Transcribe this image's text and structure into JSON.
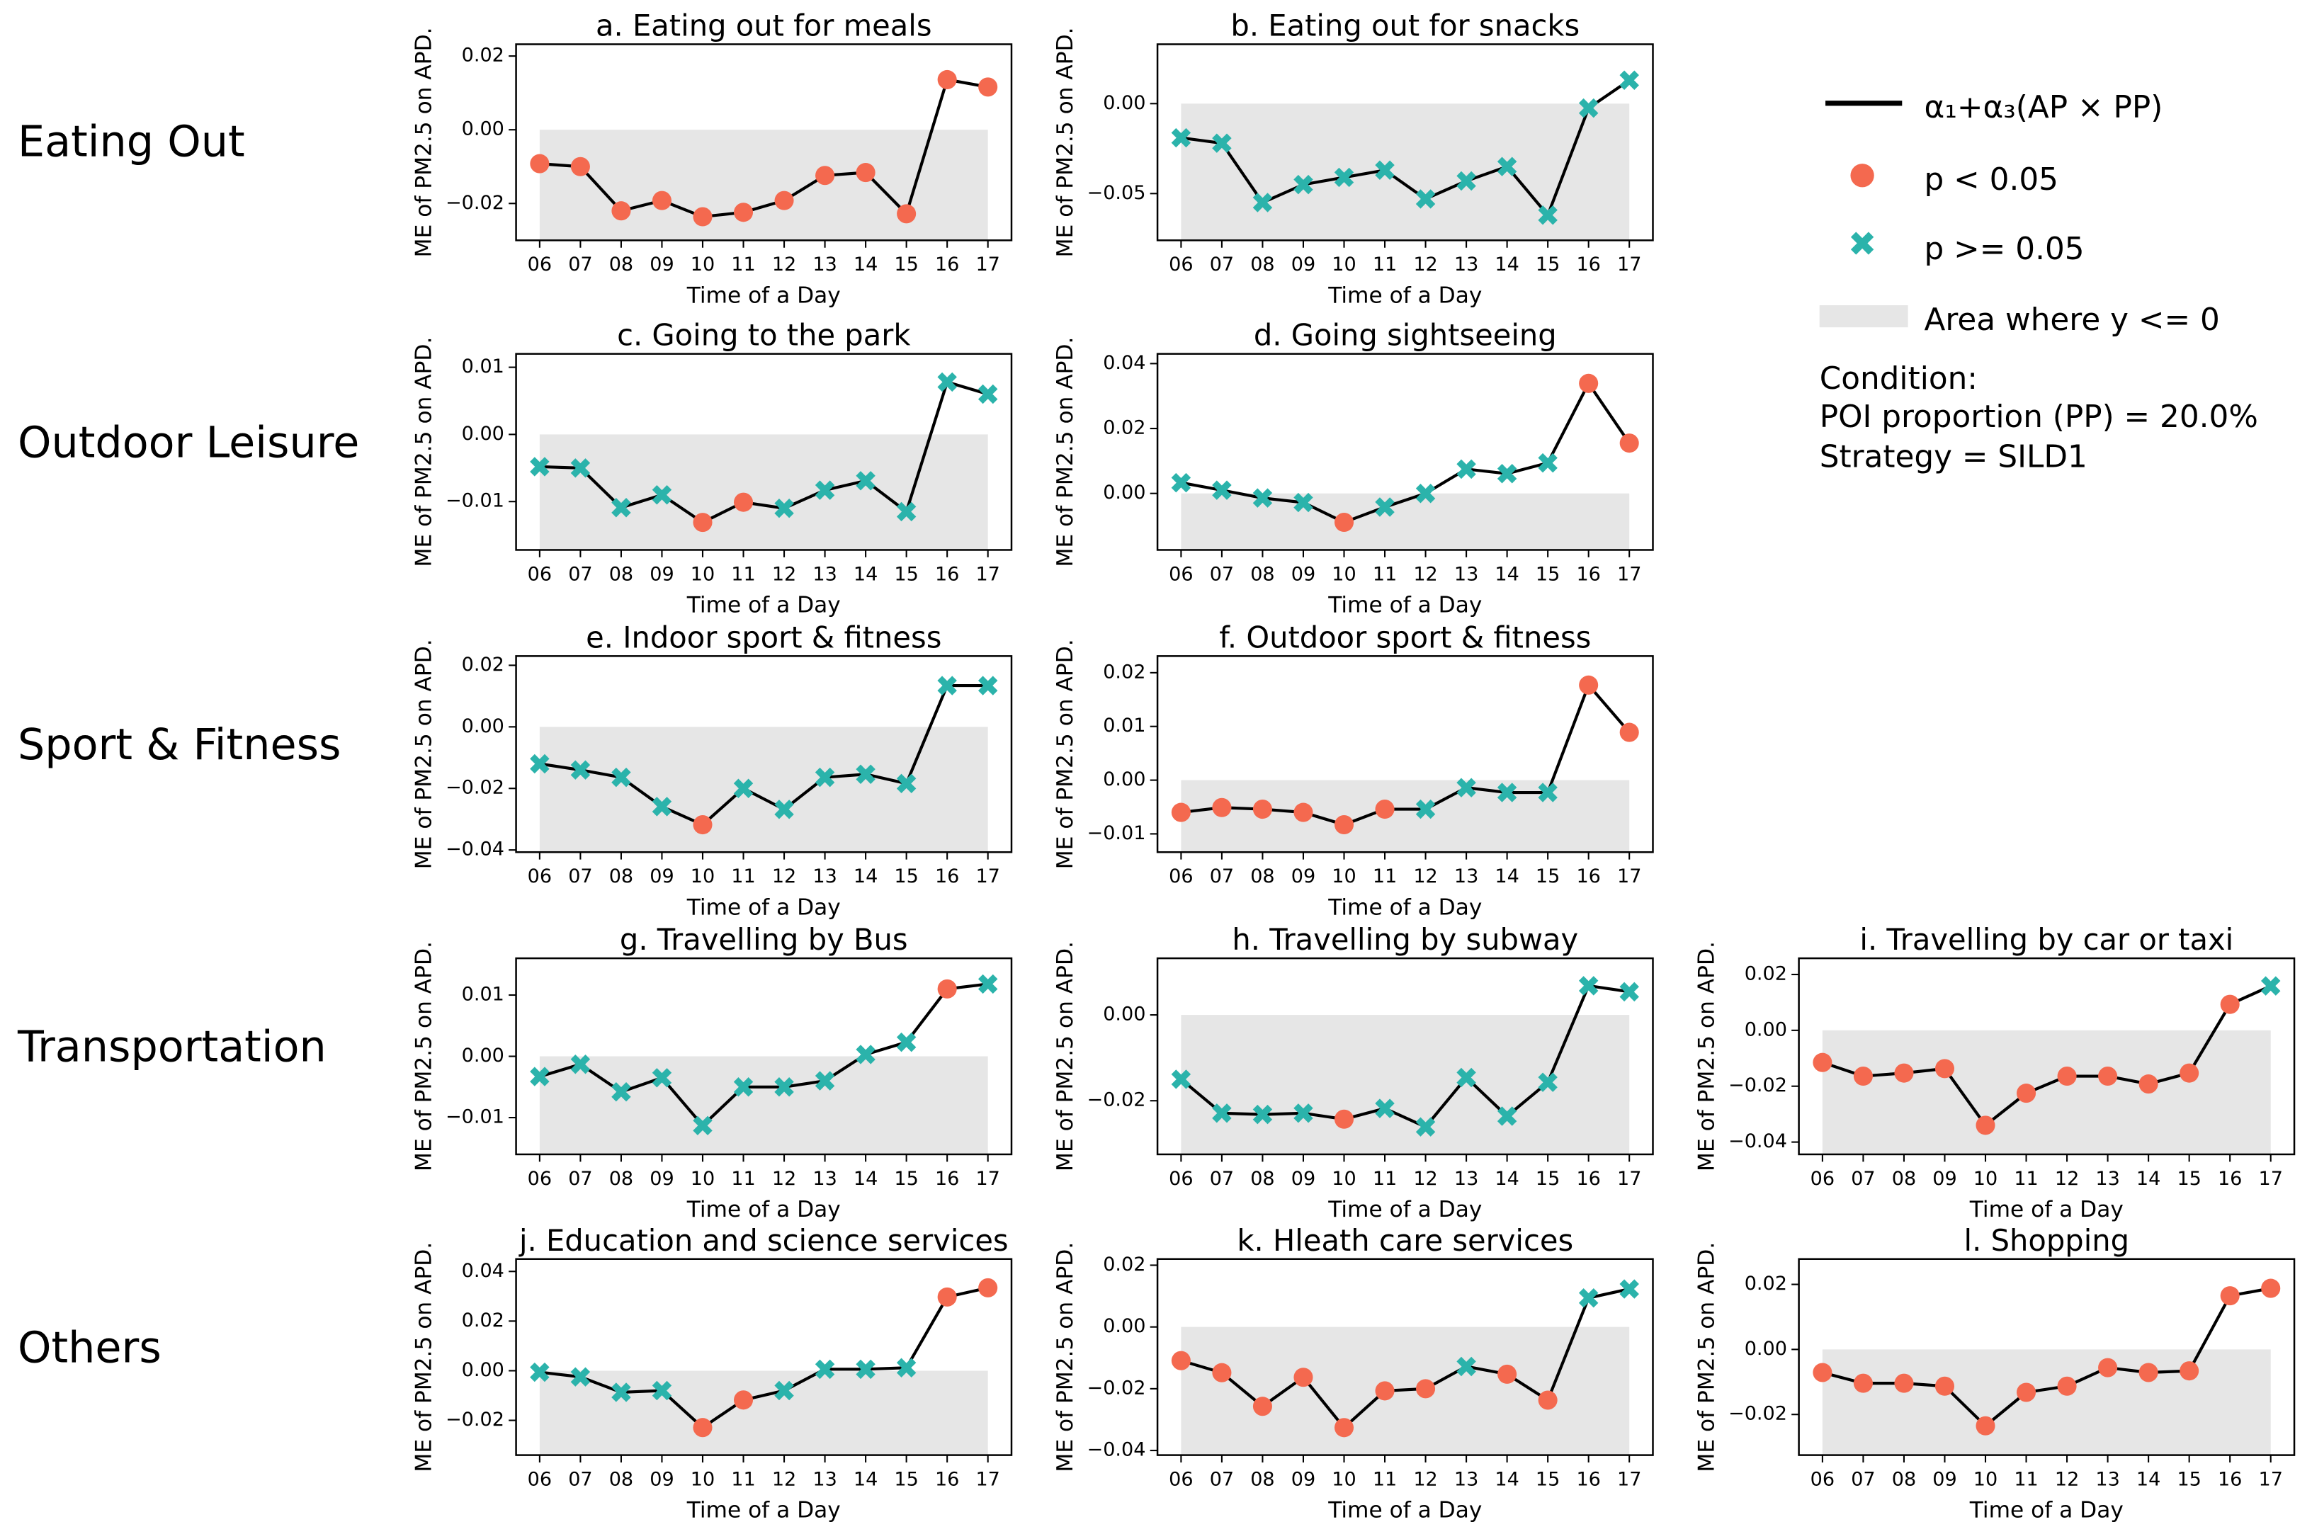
{
  "row_labels": [
    "Eating Out",
    "Outdoor Leisure",
    "Sport & Fitness",
    "Transportation",
    "Others"
  ],
  "legend": {
    "line": {
      "label": "α₁+α₃(AP × PP)",
      "color": "#000000"
    },
    "sig": {
      "label": "p < 0.05",
      "color": "#f4694f"
    },
    "nonsig": {
      "label": "p >= 0.05",
      "color": "#2bb3ab"
    },
    "area": {
      "label": "Area where y <= 0",
      "color": "#e6e6e6"
    }
  },
  "condition": [
    "Condition:",
    "POI proportion (PP) = 20.0%",
    "Strategy = SILD1"
  ],
  "chart_data": [
    {
      "type": "line",
      "title": "a. Eating out for meals",
      "xlabel": "Time of a Day",
      "ylabel": "ME of PM2.5 on APD.",
      "categories": [
        "06",
        "07",
        "08",
        "09",
        "10",
        "11",
        "12",
        "13",
        "14",
        "15",
        "16",
        "17"
      ],
      "values": [
        -0.0092,
        -0.01,
        -0.022,
        -0.0192,
        -0.0236,
        -0.0224,
        -0.0192,
        -0.0124,
        -0.0116,
        -0.0228,
        0.0136,
        0.0116
      ],
      "significant": [
        true,
        true,
        true,
        true,
        true,
        true,
        true,
        true,
        true,
        true,
        true,
        true
      ],
      "ylim": [
        -0.03,
        0.0232
      ],
      "yticks": [
        {
          "value": -0.02,
          "label": "−0.02"
        },
        {
          "value": 0,
          "label": "0.00"
        },
        0.02
      ]
    },
    {
      "type": "line",
      "title": "b. Eating out for snacks",
      "xlabel": "Time of a Day",
      "ylabel": "ME of PM2.5 on APD.",
      "categories": [
        "06",
        "07",
        "08",
        "09",
        "10",
        "11",
        "12",
        "13",
        "14",
        "15",
        "16",
        "17"
      ],
      "values": [
        -0.019,
        -0.022,
        -0.055,
        -0.045,
        -0.041,
        -0.037,
        -0.053,
        -0.043,
        -0.035,
        -0.062,
        -0.0025,
        0.013
      ],
      "significant": [
        false,
        false,
        false,
        false,
        false,
        false,
        false,
        false,
        false,
        false,
        false,
        false
      ],
      "ylim": [
        -0.076,
        0.033
      ],
      "yticks": [
        {
          "value": -0.05,
          "label": "−0.05"
        },
        {
          "value": 0,
          "label": "0.00"
        }
      ]
    },
    {
      "type": "line",
      "title": "c. Going to the park",
      "xlabel": "Time of a Day",
      "ylabel": "ME of PM2.5 on APD.",
      "categories": [
        "06",
        "07",
        "08",
        "09",
        "10",
        "11",
        "12",
        "13",
        "14",
        "15",
        "16",
        "17"
      ],
      "values": [
        -0.0048,
        -0.005,
        -0.0109,
        -0.009,
        -0.0131,
        -0.0101,
        -0.011,
        -0.0083,
        -0.0069,
        -0.0115,
        0.0078,
        0.006
      ],
      "significant": [
        false,
        false,
        false,
        false,
        true,
        true,
        false,
        false,
        false,
        false,
        false,
        false
      ],
      "ylim": [
        -0.0172,
        0.012
      ],
      "yticks": [
        {
          "value": -0.01,
          "label": "−0.01"
        },
        {
          "value": 0,
          "label": "0.00"
        },
        0.01
      ]
    },
    {
      "type": "line",
      "title": "d. Going sightseeing",
      "xlabel": "Time of a Day",
      "ylabel": "ME of PM2.5 on APD.",
      "categories": [
        "06",
        "07",
        "08",
        "09",
        "10",
        "11",
        "12",
        "13",
        "14",
        "15",
        "16",
        "17"
      ],
      "values": [
        0.0033,
        0.001,
        -0.0014,
        -0.0028,
        -0.0089,
        -0.0042,
        0,
        0.0075,
        0.0061,
        0.0094,
        0.0339,
        0.0155
      ],
      "significant": [
        false,
        false,
        false,
        false,
        true,
        false,
        false,
        false,
        false,
        false,
        true,
        true
      ],
      "ylim": [
        -0.0174,
        0.043
      ],
      "yticks": [
        {
          "value": 0,
          "label": "0.00"
        },
        0.02,
        0.04
      ]
    },
    {
      "type": "line",
      "title": "e. Indoor sport & fitness",
      "xlabel": "Time of a Day",
      "ylabel": "ME of PM2.5 on APD.",
      "categories": [
        "06",
        "07",
        "08",
        "09",
        "10",
        "11",
        "12",
        "13",
        "14",
        "15",
        "16",
        "17"
      ],
      "values": [
        -0.012,
        -0.014,
        -0.0164,
        -0.0259,
        -0.0318,
        -0.02,
        -0.0268,
        -0.0164,
        -0.0154,
        -0.0184,
        0.0134,
        0.0134
      ],
      "significant": [
        false,
        false,
        false,
        false,
        true,
        false,
        false,
        false,
        false,
        false,
        false,
        false
      ],
      "ylim": [
        -0.0407,
        0.023
      ],
      "yticks": [
        {
          "value": -0.04,
          "label": "−0.04"
        },
        {
          "value": -0.02,
          "label": "−0.02"
        },
        {
          "value": 0,
          "label": "0.00"
        },
        0.02
      ]
    },
    {
      "type": "line",
      "title": "f. Outdoor sport & fitness",
      "xlabel": "Time of a Day",
      "ylabel": "ME of PM2.5 on APD.",
      "categories": [
        "06",
        "07",
        "08",
        "09",
        "10",
        "11",
        "12",
        "13",
        "14",
        "15",
        "16",
        "17"
      ],
      "values": [
        -0.006,
        -0.0051,
        -0.0054,
        -0.006,
        -0.0083,
        -0.0054,
        -0.0054,
        -0.0014,
        -0.0023,
        -0.0023,
        0.0177,
        0.0089
      ],
      "significant": [
        true,
        true,
        true,
        true,
        true,
        true,
        false,
        false,
        false,
        false,
        true,
        true
      ],
      "ylim": [
        -0.0134,
        0.0231
      ],
      "yticks": [
        {
          "value": -0.01,
          "label": "−0.01"
        },
        {
          "value": 0,
          "label": "0.00"
        },
        0.01,
        0.02
      ]
    },
    {
      "type": "line",
      "title": "g. Travelling by Bus",
      "xlabel": "Time of a Day",
      "ylabel": "ME of PM2.5 on APD.",
      "categories": [
        "06",
        "07",
        "08",
        "09",
        "10",
        "11",
        "12",
        "13",
        "14",
        "15",
        "16",
        "17"
      ],
      "values": [
        -0.0033,
        -0.0013,
        -0.0058,
        -0.0035,
        -0.0113,
        -0.005,
        -0.005,
        -0.004,
        0.0003,
        0.0023,
        0.011,
        0.0118
      ],
      "significant": [
        false,
        false,
        false,
        false,
        false,
        false,
        false,
        false,
        false,
        false,
        true,
        false
      ],
      "ylim": [
        -0.016,
        0.016
      ],
      "yticks": [
        {
          "value": -0.01,
          "label": "−0.01"
        },
        {
          "value": 0,
          "label": "0.00"
        },
        0.01
      ]
    },
    {
      "type": "line",
      "title": "h. Travelling by subway",
      "xlabel": "Time of a Day",
      "ylabel": "ME of PM2.5 on APD.",
      "categories": [
        "06",
        "07",
        "08",
        "09",
        "10",
        "11",
        "12",
        "13",
        "14",
        "15",
        "16",
        "17"
      ],
      "values": [
        -0.015,
        -0.0229,
        -0.0232,
        -0.0229,
        -0.0243,
        -0.0218,
        -0.0261,
        -0.0146,
        -0.0236,
        -0.0157,
        0.0068,
        0.0054
      ],
      "significant": [
        false,
        false,
        false,
        false,
        true,
        false,
        false,
        false,
        false,
        false,
        false,
        false
      ],
      "ylim": [
        -0.0325,
        0.0132
      ],
      "yticks": [
        {
          "value": -0.02,
          "label": "−0.02"
        },
        {
          "value": 0,
          "label": "0.00"
        }
      ]
    },
    {
      "type": "line",
      "title": "i. Travelling by car or taxi",
      "xlabel": "Time of a Day",
      "ylabel": "ME of PM2.5 on APD.",
      "categories": [
        "06",
        "07",
        "08",
        "09",
        "10",
        "11",
        "12",
        "13",
        "14",
        "15",
        "16",
        "17"
      ],
      "values": [
        -0.0115,
        -0.0164,
        -0.0153,
        -0.0137,
        -0.034,
        -0.0225,
        -0.0164,
        -0.0164,
        -0.0192,
        -0.0153,
        0.0093,
        0.0159
      ],
      "significant": [
        true,
        true,
        true,
        true,
        true,
        true,
        true,
        true,
        true,
        true,
        true,
        false
      ],
      "ylim": [
        -0.0444,
        0.0258
      ],
      "yticks": [
        {
          "value": -0.04,
          "label": "−0.04"
        },
        {
          "value": -0.02,
          "label": "−0.02"
        },
        {
          "value": 0,
          "label": "0.00"
        },
        0.02
      ]
    },
    {
      "type": "line",
      "title": "j. Education and science services",
      "xlabel": "Time of a Day",
      "ylabel": "ME of PM2.5 on APD.",
      "categories": [
        "06",
        "07",
        "08",
        "09",
        "10",
        "11",
        "12",
        "13",
        "14",
        "15",
        "16",
        "17"
      ],
      "values": [
        -0.0006,
        -0.0025,
        -0.0087,
        -0.008,
        -0.0229,
        -0.0118,
        -0.008,
        0.0006,
        0.0006,
        0.0012,
        0.0297,
        0.0334
      ],
      "significant": [
        false,
        false,
        false,
        false,
        true,
        true,
        false,
        false,
        false,
        false,
        true,
        true
      ],
      "ylim": [
        -0.034,
        0.045
      ],
      "yticks": [
        {
          "value": -0.02,
          "label": "−0.02"
        },
        {
          "value": 0,
          "label": "0.00"
        },
        0.02,
        0.04
      ]
    },
    {
      "type": "line",
      "title": "k. Hleath care services",
      "xlabel": "Time of a Day",
      "ylabel": "ME of PM2.5 on APD.",
      "categories": [
        "06",
        "07",
        "08",
        "09",
        "10",
        "11",
        "12",
        "13",
        "14",
        "15",
        "16",
        "17"
      ],
      "values": [
        -0.0109,
        -0.0148,
        -0.0257,
        -0.0163,
        -0.0326,
        -0.0207,
        -0.02,
        -0.0128,
        -0.0153,
        -0.0237,
        0.0094,
        0.0123
      ],
      "significant": [
        true,
        true,
        true,
        true,
        true,
        true,
        true,
        false,
        true,
        true,
        false,
        false
      ],
      "ylim": [
        -0.0415,
        0.022
      ],
      "yticks": [
        {
          "value": -0.04,
          "label": "−0.04"
        },
        {
          "value": -0.02,
          "label": "−0.02"
        },
        {
          "value": 0,
          "label": "0.00"
        },
        0.02
      ]
    },
    {
      "type": "line",
      "title": "l. Shopping",
      "xlabel": "Time of a Day",
      "ylabel": "ME of PM2.5 on APD.",
      "categories": [
        "06",
        "07",
        "08",
        "09",
        "10",
        "11",
        "12",
        "13",
        "14",
        "15",
        "16",
        "17"
      ],
      "values": [
        -0.0071,
        -0.0104,
        -0.0104,
        -0.0113,
        -0.0235,
        -0.0132,
        -0.0113,
        -0.0056,
        -0.0071,
        -0.0066,
        0.0165,
        0.0188
      ],
      "significant": [
        true,
        true,
        true,
        true,
        true,
        true,
        true,
        true,
        true,
        true,
        true,
        true
      ],
      "ylim": [
        -0.0325,
        0.0278
      ],
      "yticks": [
        {
          "value": -0.02,
          "label": "−0.02"
        },
        {
          "value": 0,
          "label": "0.00"
        },
        0.02
      ]
    }
  ]
}
